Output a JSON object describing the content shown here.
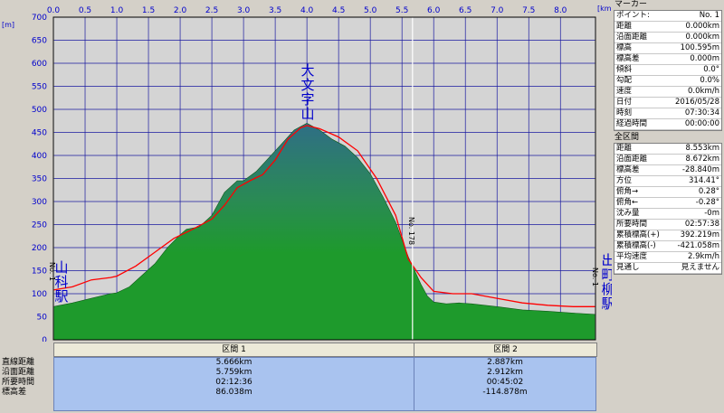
{
  "chart_data": {
    "type": "area",
    "title": "",
    "x_unit": "[km]",
    "y_unit": "[m]",
    "xlim": [
      0,
      8.553
    ],
    "ylim": [
      0,
      700
    ],
    "x_ticks": [
      "0.0",
      "0.5",
      "1.0",
      "1.5",
      "2.0",
      "2.5",
      "3.0",
      "3.5",
      "4.0",
      "4.5",
      "5.0",
      "5.5",
      "6.0",
      "6.5",
      "7.0",
      "7.5",
      "8.0"
    ],
    "y_ticks": [
      "0",
      "50",
      "100",
      "150",
      "200",
      "250",
      "300",
      "350",
      "400",
      "450",
      "500",
      "550",
      "600",
      "650",
      "700"
    ],
    "grid": true,
    "series": [
      {
        "name": "",
        "kind": "terrain",
        "color": "#1e9a2c",
        "x": [
          0.0,
          0.3,
          0.6,
          0.9,
          1.0,
          1.2,
          1.4,
          1.6,
          1.8,
          2.0,
          2.1,
          2.3,
          2.5,
          2.7,
          2.9,
          3.0,
          3.2,
          3.4,
          3.6,
          3.8,
          4.0,
          4.2,
          4.4,
          4.6,
          4.8,
          5.0,
          5.2,
          5.4,
          5.6,
          5.7,
          5.8,
          5.9,
          6.0,
          6.2,
          6.4,
          6.6,
          7.0,
          7.4,
          7.8,
          8.2,
          8.553
        ],
        "y": [
          72,
          80,
          90,
          100,
          102,
          115,
          140,
          165,
          200,
          228,
          240,
          245,
          270,
          320,
          345,
          345,
          365,
          395,
          425,
          455,
          470,
          455,
          435,
          420,
          395,
          360,
          310,
          255,
          180,
          150,
          120,
          95,
          82,
          78,
          80,
          78,
          72,
          65,
          62,
          58,
          55
        ]
      },
      {
        "name": "",
        "kind": "gps-track",
        "color": "#ff0000",
        "x": [
          0.0,
          0.3,
          0.6,
          0.9,
          1.0,
          1.3,
          1.6,
          1.9,
          2.2,
          2.5,
          2.7,
          2.9,
          3.1,
          3.3,
          3.5,
          3.7,
          3.9,
          4.0,
          4.2,
          4.5,
          4.8,
          5.1,
          5.4,
          5.6,
          5.8,
          6.0,
          6.3,
          6.6,
          7.0,
          7.4,
          7.8,
          8.2,
          8.553
        ],
        "y": [
          108,
          115,
          130,
          135,
          138,
          160,
          190,
          220,
          240,
          262,
          292,
          330,
          345,
          358,
          390,
          435,
          460,
          465,
          458,
          440,
          410,
          350,
          270,
          175,
          135,
          105,
          100,
          100,
          90,
          80,
          75,
          72,
          72
        ]
      }
    ],
    "dividers": [
      {
        "x": 0.0,
        "label": "No. 1"
      },
      {
        "x": 5.666,
        "label": "No. 178"
      },
      {
        "x": 8.553,
        "label": "No. 1"
      }
    ],
    "annotations": [
      {
        "text": "大文字山",
        "x": 4.0
      },
      {
        "text": "山科駅",
        "x": 0.0
      },
      {
        "text": "出町柳駅",
        "x": 8.553
      }
    ]
  },
  "sections": {
    "row_labels": [
      "直線距離",
      "沿面距離",
      "所要時間",
      "標高差"
    ],
    "items": [
      {
        "title": "区間 1",
        "values": [
          "5.666km",
          "5.759km",
          "02:12:36",
          "86.038m"
        ]
      },
      {
        "title": "区間 2",
        "values": [
          "2.887km",
          "2.912km",
          "00:45:02",
          "-114.878m"
        ]
      }
    ]
  },
  "marker_panel": {
    "title": "マーカー",
    "rows": [
      {
        "label": "ポイント:",
        "value": "No. 1"
      },
      {
        "label": "距離",
        "value": "0.000km"
      },
      {
        "label": "沿面距離",
        "value": "0.000km"
      },
      {
        "label": "標高",
        "value": "100.595m"
      },
      {
        "label": "標高差",
        "value": "0.000m"
      },
      {
        "label": "傾斜",
        "value": "0.0°"
      },
      {
        "label": "勾配",
        "value": "0.0%"
      },
      {
        "label": "速度",
        "value": "0.0km/h"
      },
      {
        "label": "日付",
        "value": "2016/05/28"
      },
      {
        "label": "時刻",
        "value": "07:30:34"
      },
      {
        "label": "経過時間",
        "value": "00:00:00"
      }
    ]
  },
  "total_panel": {
    "title": "全区間",
    "rows": [
      {
        "label": "距離",
        "value": "8.553km"
      },
      {
        "label": "沿面距離",
        "value": "8.672km"
      },
      {
        "label": "標高差",
        "value": "-28.840m"
      },
      {
        "label": "方位",
        "value": "314.41°"
      },
      {
        "label": "俯角→",
        "value": "0.28°"
      },
      {
        "label": "俯角←",
        "value": "-0.28°"
      },
      {
        "label": "沈み量",
        "value": "-0m"
      },
      {
        "label": "所要時間",
        "value": "02:57:38"
      },
      {
        "label": "累積標高(+)",
        "value": "392.219m"
      },
      {
        "label": "累積標高(-)",
        "value": "-421.058m"
      },
      {
        "label": "平均速度",
        "value": "2.9km/h"
      },
      {
        "label": "見通し",
        "value": "見えません"
      }
    ]
  },
  "colors": {
    "plot_bg": "#d4d4d4",
    "grid": "#1a1aa0",
    "axis_text": "#0000cc",
    "terrain": "#1e9a2c",
    "track": "#ff0000",
    "section_bg": "#a9c3ef"
  }
}
